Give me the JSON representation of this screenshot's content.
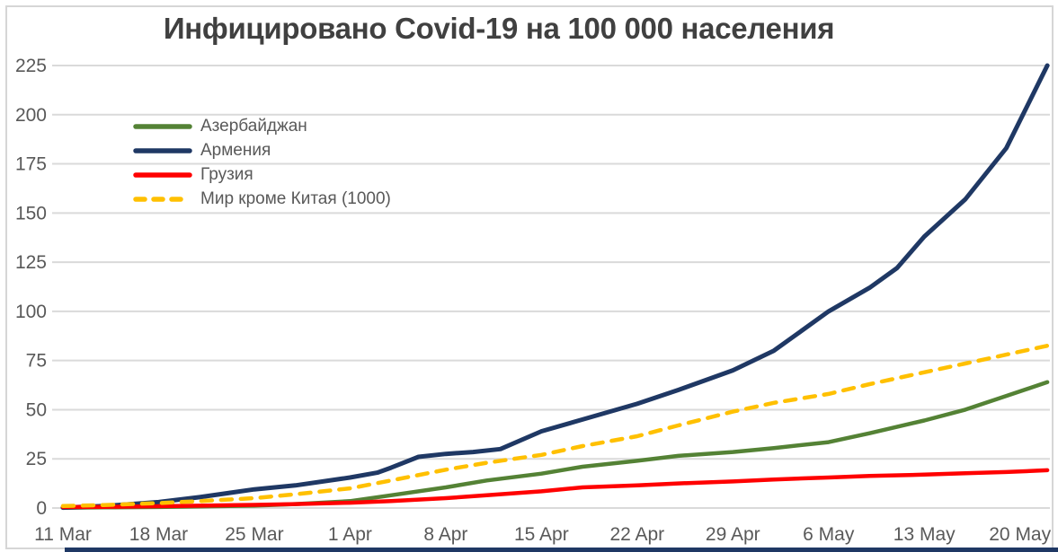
{
  "title": "Инфицировано Covid-19 на 100 000 населения",
  "colors": {
    "title_text": "#404040",
    "axis_text": "#595959",
    "grid": "#dadada",
    "frame": "#d6d6d6",
    "bottom_bar": "#1f3864"
  },
  "chart_data": {
    "type": "line",
    "title": "Инфицировано Covid-19 на 100 000 населения",
    "xlabel": "",
    "ylabel": "",
    "grid": "horizontal",
    "legend_position": "upper-left-inside",
    "ylim": [
      0,
      232
    ],
    "xlim_days": [
      0,
      73
    ],
    "y_ticks": [
      0,
      25,
      50,
      75,
      100,
      125,
      150,
      175,
      200,
      225
    ],
    "x_ticks": {
      "days": [
        0,
        7,
        14,
        21,
        28,
        35,
        42,
        49,
        56,
        63,
        70
      ],
      "labels": [
        "11 Mar",
        "18 Mar",
        "25 Mar",
        "1 Apr",
        "8 Apr",
        "15 Apr",
        "22 Apr",
        "29 Apr",
        "6 May",
        "13 May",
        "20 May"
      ]
    },
    "series": [
      {
        "key": "azerbaijan",
        "name": "Азербайджан",
        "color": "#548235",
        "style": "solid",
        "points": [
          [
            0,
            0.1
          ],
          [
            3,
            0.3
          ],
          [
            7,
            0.5
          ],
          [
            10,
            0.8
          ],
          [
            14,
            1.2
          ],
          [
            17,
            2
          ],
          [
            21,
            3.5
          ],
          [
            24,
            6.5
          ],
          [
            28,
            10.5
          ],
          [
            31,
            14
          ],
          [
            35,
            17.5
          ],
          [
            38,
            21
          ],
          [
            42,
            24
          ],
          [
            45,
            26.5
          ],
          [
            49,
            28.5
          ],
          [
            52,
            30.5
          ],
          [
            56,
            33.5
          ],
          [
            59,
            38
          ],
          [
            63,
            44.5
          ],
          [
            66,
            50
          ],
          [
            69,
            57
          ],
          [
            72,
            64
          ]
        ]
      },
      {
        "key": "armenia",
        "name": "Армения",
        "color": "#1f3864",
        "style": "solid",
        "points": [
          [
            0,
            0.2
          ],
          [
            3,
            1
          ],
          [
            7,
            3
          ],
          [
            10,
            5.5
          ],
          [
            14,
            9.5
          ],
          [
            17,
            11.5
          ],
          [
            21,
            15.5
          ],
          [
            23,
            18
          ],
          [
            24,
            20.5
          ],
          [
            26,
            26
          ],
          [
            28,
            27.5
          ],
          [
            30,
            28.5
          ],
          [
            32,
            30
          ],
          [
            35,
            39
          ],
          [
            38,
            45
          ],
          [
            42,
            53
          ],
          [
            45,
            60
          ],
          [
            49,
            70
          ],
          [
            52,
            80
          ],
          [
            56,
            100
          ],
          [
            59,
            112
          ],
          [
            61,
            122
          ],
          [
            63,
            138
          ],
          [
            66,
            157
          ],
          [
            69,
            183
          ],
          [
            72,
            225
          ]
        ]
      },
      {
        "key": "georgia",
        "name": "Грузия",
        "color": "#ff0000",
        "style": "solid",
        "points": [
          [
            0,
            0.5
          ],
          [
            3,
            0.6
          ],
          [
            7,
            0.9
          ],
          [
            10,
            1.2
          ],
          [
            14,
            1.6
          ],
          [
            17,
            2
          ],
          [
            21,
            2.7
          ],
          [
            24,
            3.5
          ],
          [
            28,
            5
          ],
          [
            31,
            6.5
          ],
          [
            35,
            8.5
          ],
          [
            38,
            10.5
          ],
          [
            42,
            11.5
          ],
          [
            45,
            12.5
          ],
          [
            49,
            13.5
          ],
          [
            52,
            14.5
          ],
          [
            56,
            15.5
          ],
          [
            59,
            16.3
          ],
          [
            63,
            17
          ],
          [
            66,
            17.7
          ],
          [
            69,
            18.3
          ],
          [
            72,
            19.2
          ]
        ]
      },
      {
        "key": "world-ex-china",
        "name": "Мир кроме Китая (1000)",
        "color": "#ffc000",
        "style": "dashed",
        "points": [
          [
            0,
            1
          ],
          [
            3,
            1.5
          ],
          [
            7,
            2.5
          ],
          [
            10,
            3.5
          ],
          [
            14,
            5
          ],
          [
            17,
            7
          ],
          [
            21,
            10
          ],
          [
            24,
            14
          ],
          [
            28,
            19.5
          ],
          [
            31,
            23
          ],
          [
            35,
            27
          ],
          [
            38,
            31.5
          ],
          [
            42,
            36.5
          ],
          [
            45,
            42
          ],
          [
            49,
            49
          ],
          [
            52,
            53.5
          ],
          [
            56,
            58
          ],
          [
            59,
            63
          ],
          [
            63,
            69
          ],
          [
            66,
            73.5
          ],
          [
            69,
            78
          ],
          [
            72,
            82.5
          ]
        ]
      }
    ]
  }
}
